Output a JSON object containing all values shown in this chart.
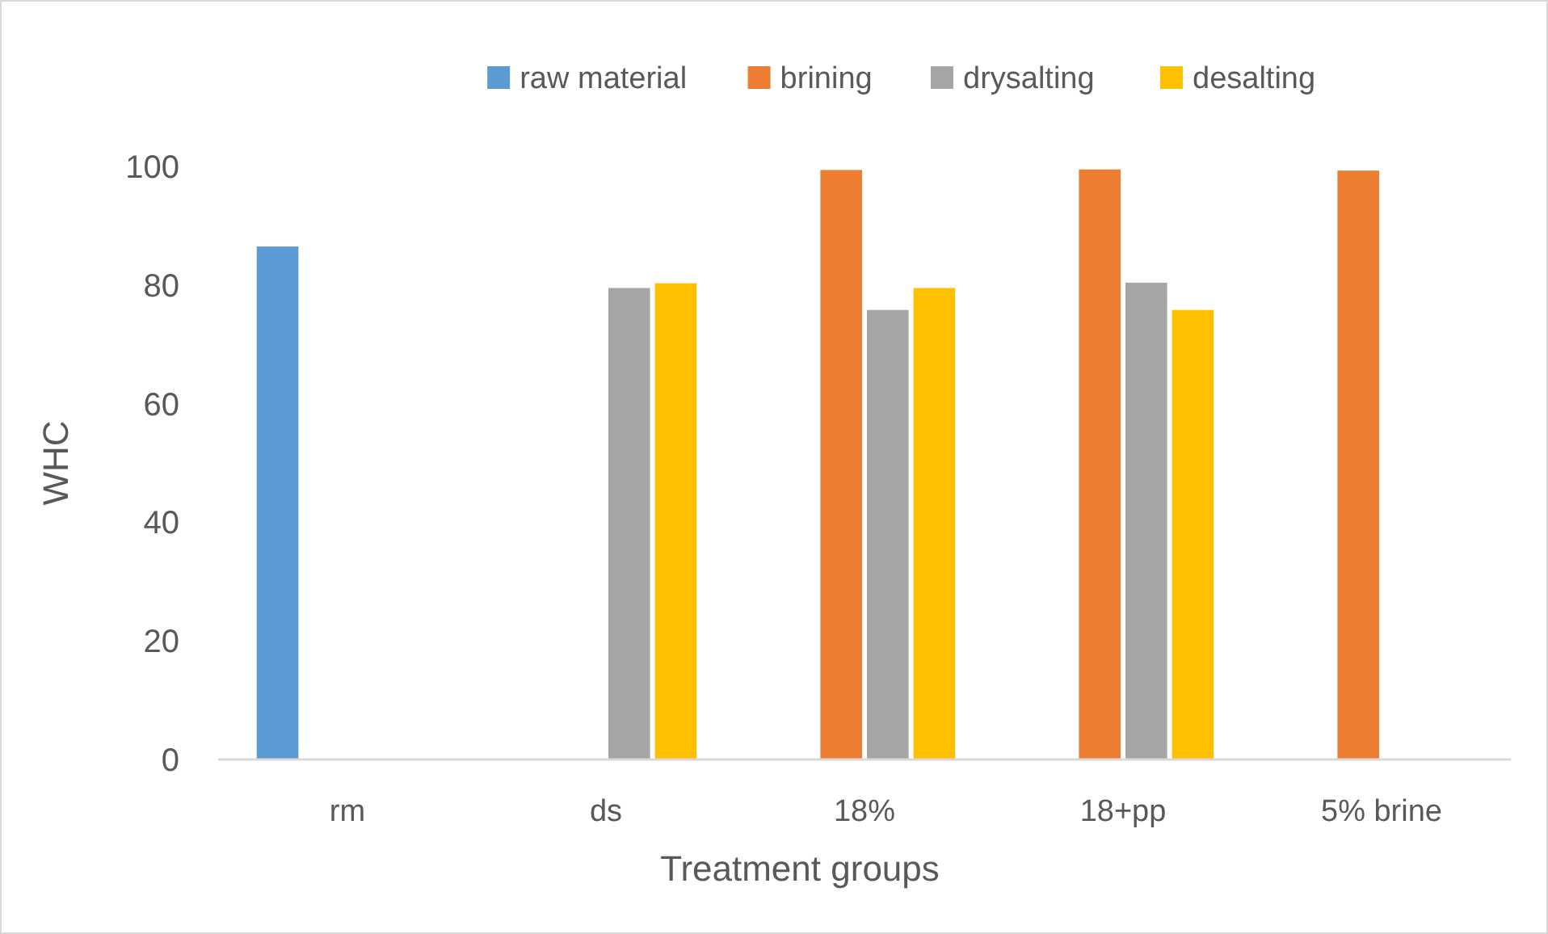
{
  "chart_data": {
    "type": "bar",
    "xlabel": "Treatment groups",
    "ylabel": "WHC",
    "categories": [
      "rm",
      "ds",
      "18%",
      "18+pp",
      "5% brine"
    ],
    "series": [
      {
        "name": "raw material",
        "color": "#5b9bd5",
        "values": [
          86.5,
          null,
          null,
          null,
          null
        ]
      },
      {
        "name": "brining",
        "color": "#ed7d31",
        "values": [
          null,
          null,
          99.4,
          99.5,
          99.3
        ]
      },
      {
        "name": "drysalting",
        "color": "#a5a5a5",
        "values": [
          null,
          79.5,
          75.8,
          80.4,
          null
        ]
      },
      {
        "name": "desalting",
        "color": "#ffc000",
        "values": [
          null,
          80.3,
          79.5,
          75.8,
          null
        ]
      }
    ],
    "ylim": [
      0,
      100
    ],
    "yticks": [
      0,
      20,
      40,
      60,
      80,
      100
    ],
    "grid": false,
    "legend": "top"
  }
}
